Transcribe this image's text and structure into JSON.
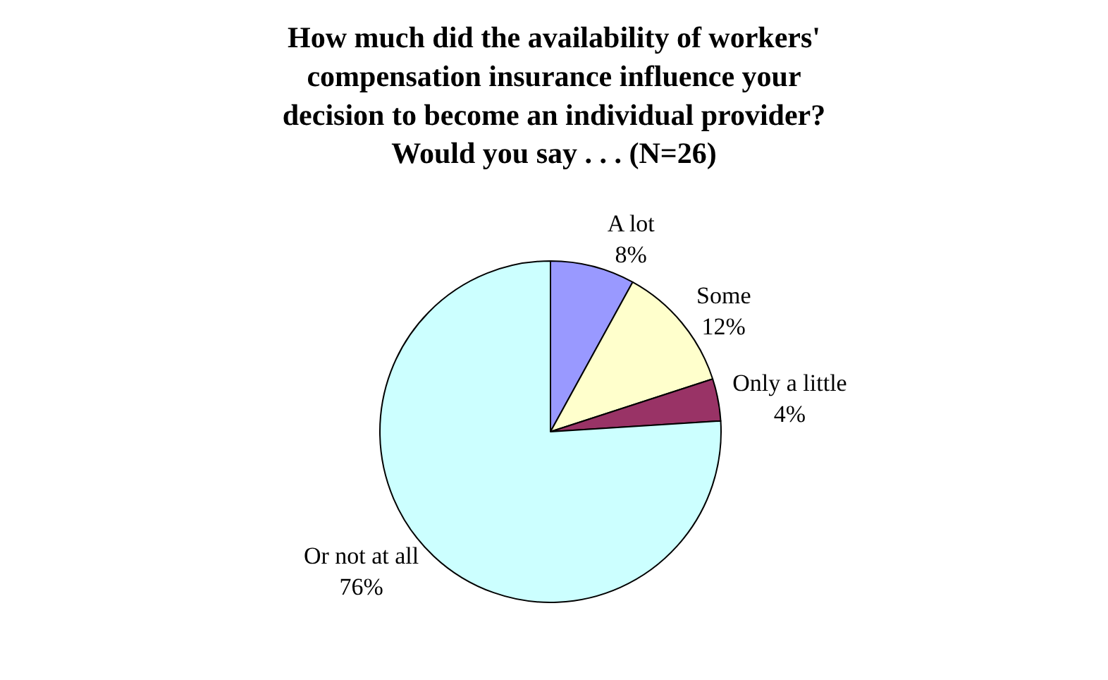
{
  "chart_data": {
    "type": "pie",
    "title": "How much did the availability of workers'\ncompensation insurance influence your\ndecision to become an individual provider?\nWould you say . . . (N=26)",
    "categories": [
      "A lot",
      "Some",
      "Only a little",
      "Or not at all"
    ],
    "values": [
      8,
      12,
      4,
      76
    ],
    "value_labels": [
      "8%",
      "12%",
      "4%",
      "76%"
    ],
    "colors": [
      "#9999ff",
      "#ffffcc",
      "#993366",
      "#ccffff"
    ],
    "legend": false
  }
}
